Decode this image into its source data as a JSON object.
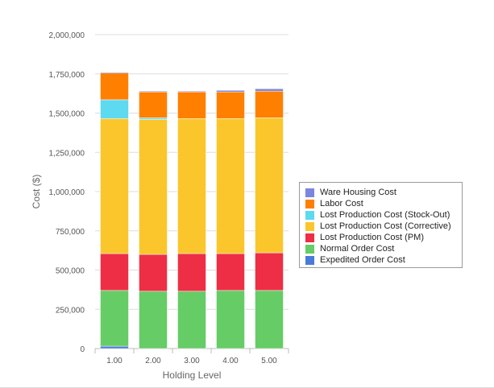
{
  "chart_data": {
    "type": "bar",
    "stacked": true,
    "categories": [
      "1.00",
      "2.00",
      "3.00",
      "4.00",
      "5.00"
    ],
    "xlabel": "Holding Level",
    "ylabel": "Cost ($)",
    "ylim": [
      0,
      2000000
    ],
    "yticks": [
      0,
      250000,
      500000,
      750000,
      1000000,
      1250000,
      1500000,
      1750000,
      2000000
    ],
    "ytick_labels": [
      "0",
      "250,000",
      "500,000",
      "750,000",
      "1,000,000",
      "1,250,000",
      "1,500,000",
      "1,750,000",
      "2,000,000"
    ],
    "grid": true,
    "legend_position": "right",
    "series": [
      {
        "name": "Expedited Order Cost",
        "color": "#4a7bd8",
        "values": [
          15000,
          0,
          0,
          0,
          0
        ]
      },
      {
        "name": "Normal Order Cost",
        "color": "#66cc66",
        "values": [
          355000,
          365000,
          365000,
          370000,
          370000
        ]
      },
      {
        "name": "Lost Production Cost (PM)",
        "color": "#ee2e44",
        "values": [
          235000,
          235000,
          240000,
          235000,
          240000
        ]
      },
      {
        "name": "Lost Production Cost (Corrective)",
        "color": "#fac62b",
        "values": [
          860000,
          860000,
          860000,
          860000,
          860000
        ]
      },
      {
        "name": "Lost Production Cost (Stock-Out)",
        "color": "#5dd9f0",
        "values": [
          120000,
          10000,
          0,
          0,
          0
        ]
      },
      {
        "name": "Labor Cost",
        "color": "#ff7f00",
        "values": [
          170000,
          165000,
          170000,
          170000,
          170000
        ]
      },
      {
        "name": "Ware Housing Cost",
        "color": "#7b86e0",
        "values": [
          5000,
          5000,
          5000,
          10000,
          15000
        ]
      }
    ],
    "legend_order": [
      "Ware Housing Cost",
      "Labor Cost",
      "Lost Production Cost (Stock-Out)",
      "Lost Production Cost (Corrective)",
      "Lost Production Cost (PM)",
      "Normal Order Cost",
      "Expedited Order Cost"
    ]
  }
}
